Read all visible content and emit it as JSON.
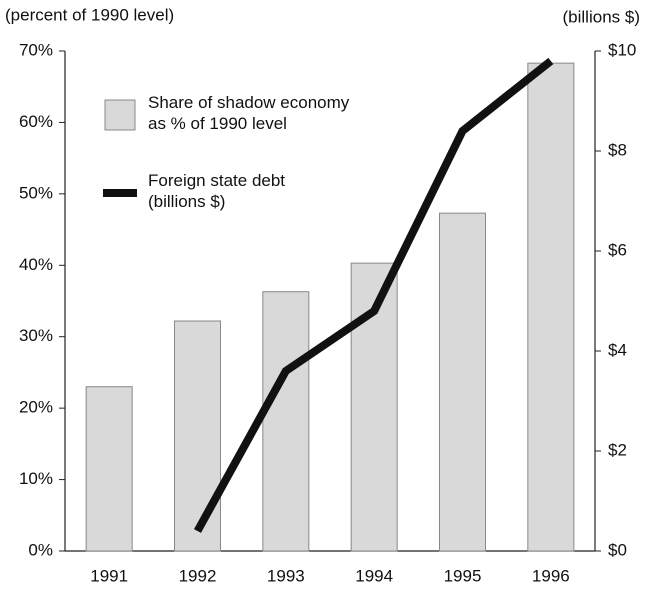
{
  "chart_data": {
    "type": "bar_line",
    "y_label": "(percent of 1990 level)",
    "y2_label": "(billions $)",
    "categories": [
      "1991",
      "1992",
      "1993",
      "1994",
      "1995",
      "1996"
    ],
    "series": [
      {
        "name": "Share of shadow economy\nas % of 1990 level",
        "type": "bar",
        "color": "#d9d9d9",
        "values": [
          23,
          32.2,
          36.3,
          40.3,
          47.3,
          68.3
        ]
      },
      {
        "name": "Foreign state debt\n(billions $)",
        "type": "line",
        "axis": "y2",
        "color": "#111111",
        "values": [
          null,
          0.4,
          3.6,
          4.8,
          8.4,
          9.8
        ]
      }
    ],
    "ylim": [
      0,
      70
    ],
    "yticks": [
      {
        "value": 0,
        "label": "0%"
      },
      {
        "value": 10,
        "label": "10%"
      },
      {
        "value": 20,
        "label": "20%"
      },
      {
        "value": 30,
        "label": "30%"
      },
      {
        "value": 40,
        "label": "40%"
      },
      {
        "value": 50,
        "label": "50%"
      },
      {
        "value": 60,
        "label": "60%"
      },
      {
        "value": 70,
        "label": "70%"
      }
    ],
    "y2lim": [
      0,
      10
    ],
    "y2ticks": [
      {
        "value": 0,
        "label": "$0"
      },
      {
        "value": 2,
        "label": "$2"
      },
      {
        "value": 4,
        "label": "$4"
      },
      {
        "value": 6,
        "label": "$6"
      },
      {
        "value": 8,
        "label": "$8"
      },
      {
        "value": 10,
        "label": "$10"
      }
    ]
  }
}
